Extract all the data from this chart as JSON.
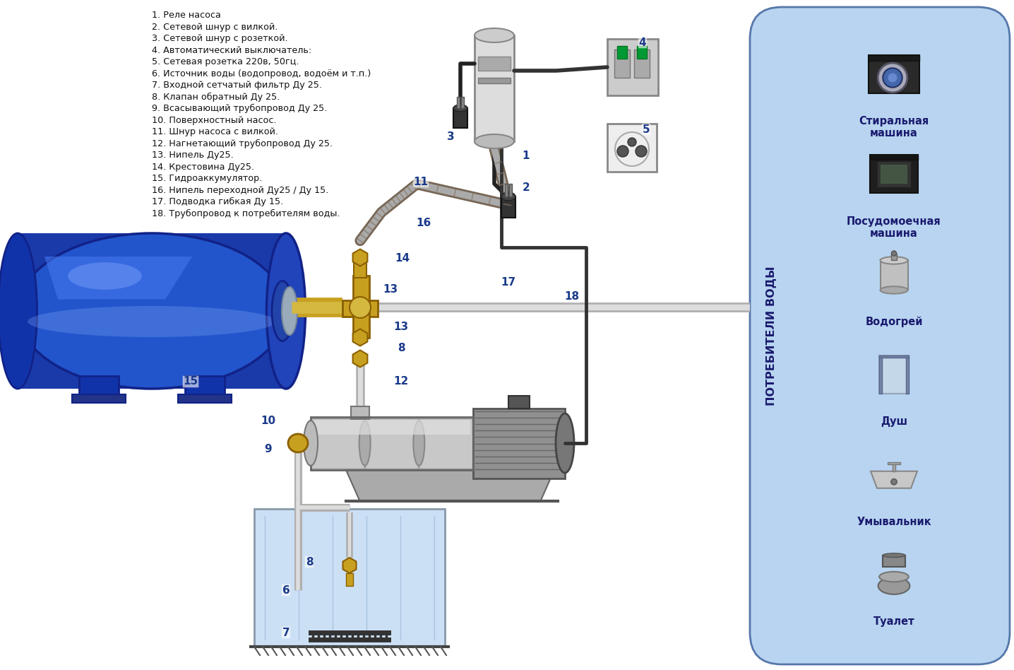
{
  "bg_color": "#ffffff",
  "legend_items": [
    "1. Реле насоса",
    "2. Сетевой шнур с вилкой.",
    "3. Сетевой шнур с розеткой.",
    "4. Автоматический выключатель:",
    "5. Сетевая розетка 220в, 50гц.",
    "6. Источник воды (водопровод, водоём и т.п.)",
    "7. Входной сетчатый фильтр Ду 25.",
    "8. Клапан обратный Ду 25.",
    "9. Всасывающий трубопровод Ду 25.",
    "10. Поверхностный насос.",
    "11. Шнур насоса с вилкой.",
    "12. Нагнетающий трубопровод Ду 25.",
    "13. Нипель Ду25.",
    "14. Крестовина Ду25.",
    "15. Гидроаккумулятор.",
    "16. Нипель переходной Ду25 / Ду 15.",
    "17. Подводка гибкая Ду 15.",
    "18. Трубопровод к потребителям воды."
  ],
  "consumers": [
    "Стиральная\nмашина",
    "Посудомоечная\nмашина",
    "Водогрей",
    "Душ",
    "Умывальник",
    "Туалет"
  ],
  "panel_label": "ПОТРЕБИТЕЛИ ВОДЫ",
  "panel_bg": "#b8d4f0",
  "legend_fontsize": 9.2,
  "number_color": "#1a3a8a",
  "tank_blue_dark": "#1a3aaa",
  "tank_blue_mid": "#2255cc",
  "tank_blue_light": "#4477ee",
  "tank_blue_shine": "#88aaff",
  "brass": "#c8a020",
  "brass_dark": "#8b6000",
  "pipe_gray": "#b0b0b0",
  "pipe_dark": "#888888",
  "pump_silver": "#c8c8c8",
  "motor_gray": "#909090",
  "well_bg": "#cce0f5",
  "well_stripe": "#88aacc"
}
